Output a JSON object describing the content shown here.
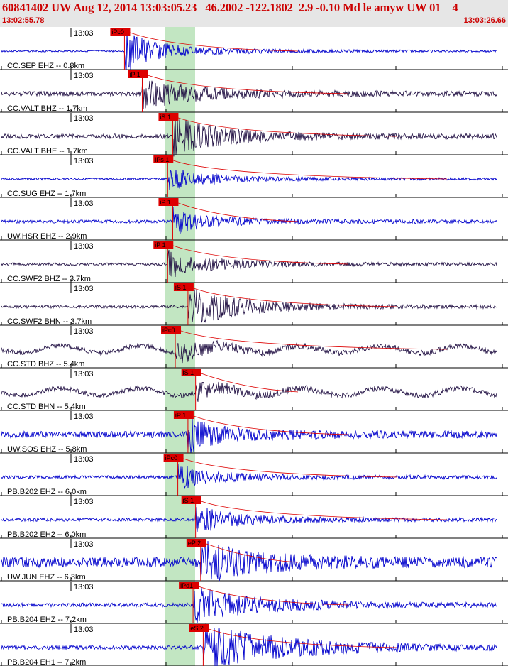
{
  "header": {
    "title": "60841402 UW Aug 12, 2014 13:03:05.23   46.2002 -122.1802  2.9 -0.10 Md le amyw UW 01    4",
    "start_time": "13:02:55.78",
    "end_time": "13:03:26.66"
  },
  "chart_data": {
    "type": "line",
    "tick_label": "13:03",
    "colors": {
      "title": "#cc0000",
      "header_bg": "#e6e6e6",
      "trace_blue": "#0000cc",
      "trace_dark": "#221144",
      "pick": "#dd0000",
      "window": "#b7e2b7"
    },
    "traces": [
      {
        "label": "CC.SEP EHZ -- 0.8km",
        "color": "blue",
        "pick": "iPc0",
        "onset": 0.245,
        "amp": 0.85,
        "noise": 0.04,
        "decay": 0.7
      },
      {
        "label": "CC.VALT BHZ -- 1.7km",
        "color": "dark",
        "pick": "iP 1",
        "onset": 0.28,
        "amp": 0.6,
        "noise": 0.12,
        "decay": 1.1
      },
      {
        "label": "CC.VALT BHE -- 1.7km",
        "color": "dark",
        "pick": "iS 1",
        "onset": 0.34,
        "amp": 0.75,
        "noise": 0.12,
        "decay": 1.0
      },
      {
        "label": "CC.SUG EHZ -- 1.7km",
        "color": "blue",
        "pick": "iPs 1",
        "onset": 0.33,
        "amp": 0.5,
        "noise": 0.05,
        "decay": 0.8
      },
      {
        "label": "UW.HSR EHZ -- 2.9km",
        "color": "blue",
        "pick": "iP 1",
        "onset": 0.34,
        "amp": 0.55,
        "noise": 0.08,
        "decay": 0.7
      },
      {
        "label": "CC.SWF2 BHZ -- 3.7km",
        "color": "dark",
        "pick": "iP 1",
        "onset": 0.33,
        "amp": 0.55,
        "noise": 0.07,
        "decay": 0.9
      },
      {
        "label": "CC.SWF2 BHN -- 3.7km",
        "color": "dark",
        "pick": "iS 1",
        "onset": 0.37,
        "amp": 0.8,
        "noise": 0.07,
        "decay": 1.1
      },
      {
        "label": "CC.STD BHZ -- 5.4km",
        "color": "dark",
        "pick": "iPc0",
        "onset": 0.345,
        "amp": 0.45,
        "noise": 0.12,
        "decay": 0.6
      },
      {
        "label": "CC.STD BHN -- 5.4km",
        "color": "dark",
        "pick": "iS 1",
        "onset": 0.385,
        "amp": 0.35,
        "noise": 0.12,
        "decay": 0.6
      },
      {
        "label": "UW.SOS EHZ -- 5.8km",
        "color": "blue",
        "pick": "iP 1",
        "onset": 0.37,
        "amp": 0.7,
        "noise": 0.16,
        "decay": 0.6
      },
      {
        "label": "PB.B202 EHZ -- 6.0km",
        "color": "blue",
        "pick": "iPc0",
        "onset": 0.35,
        "amp": 0.5,
        "noise": 0.08,
        "decay": 0.7
      },
      {
        "label": "PB.B202 EH2 -- 6.0km",
        "color": "blue",
        "pick": "iS 1",
        "onset": 0.385,
        "amp": 0.55,
        "noise": 0.08,
        "decay": 0.8
      },
      {
        "label": "UW.JUN EHZ -- 6.3km",
        "color": "blue",
        "pick": "eP 2",
        "onset": 0.395,
        "amp": 0.8,
        "noise": 0.25,
        "decay": 1.1
      },
      {
        "label": "PB.B204 EHZ -- 7.2km",
        "color": "blue",
        "pick": "iPd1",
        "onset": 0.38,
        "amp": 0.7,
        "noise": 0.1,
        "decay": 1.5
      },
      {
        "label": "PB.B204 EH1 -- 7.2km",
        "color": "blue",
        "pick": "eS 2",
        "onset": 0.4,
        "amp": 0.9,
        "noise": 0.1,
        "decay": 2.0
      }
    ]
  }
}
